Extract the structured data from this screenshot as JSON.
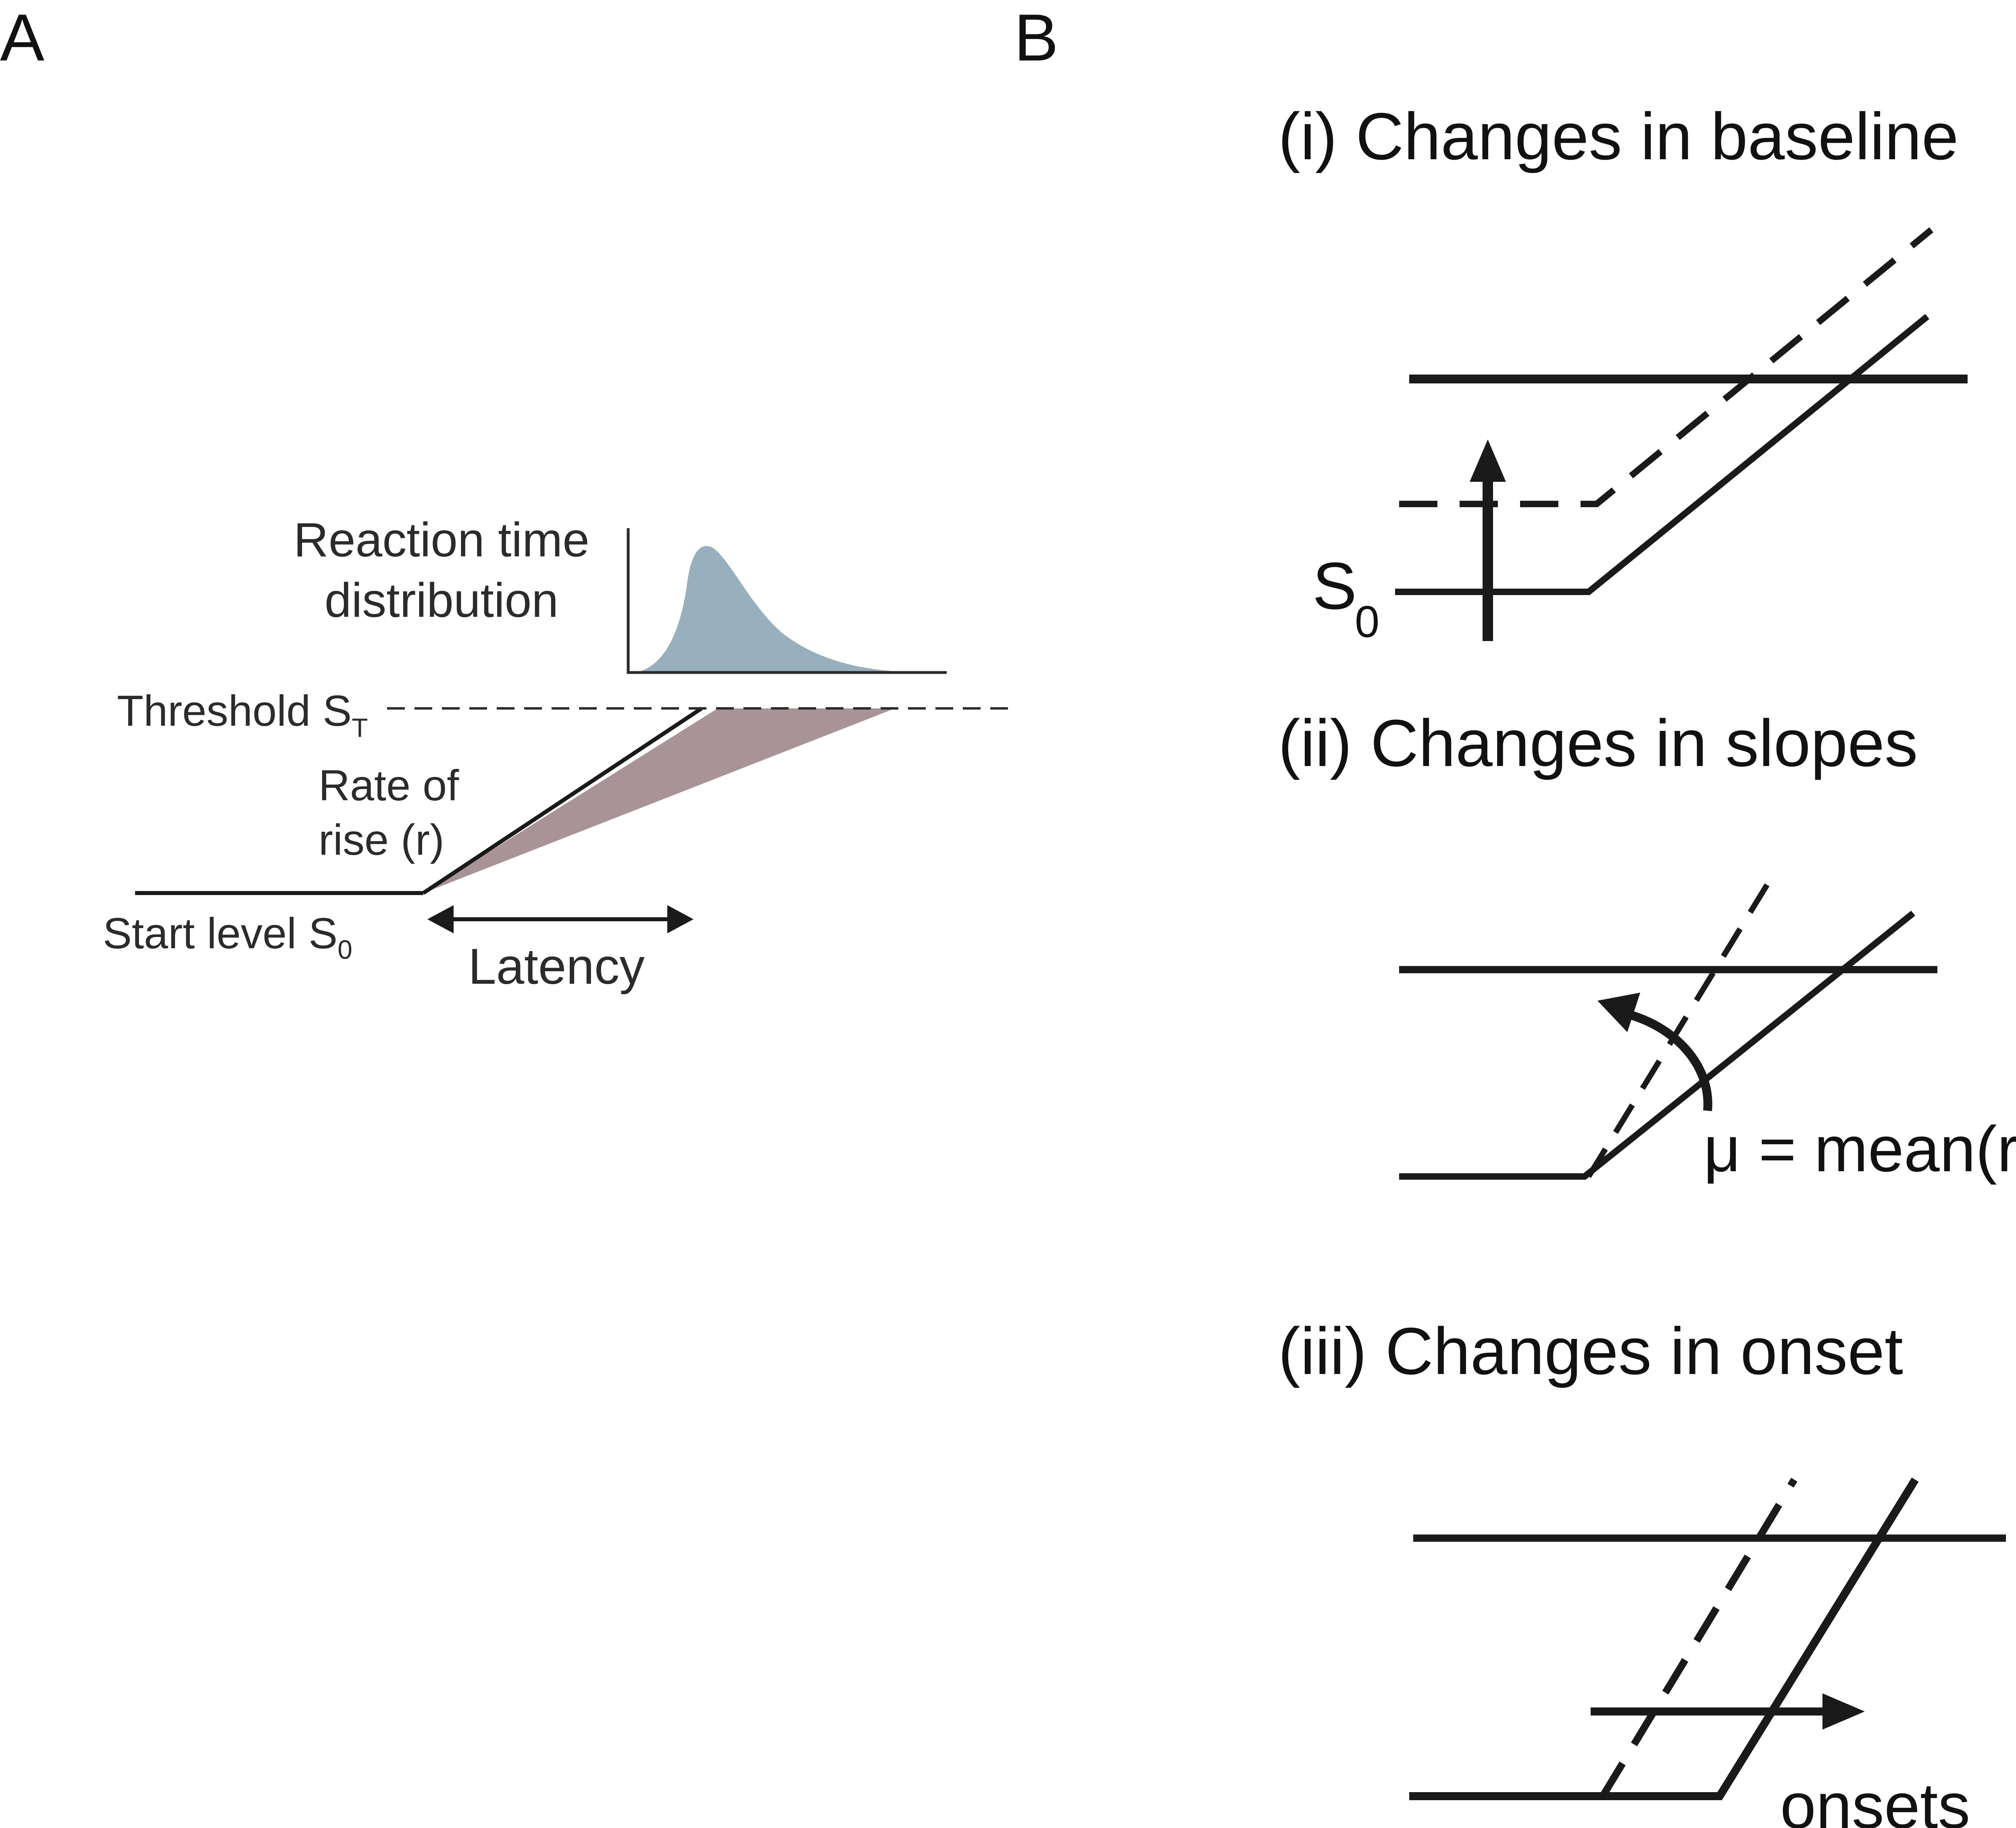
{
  "panel_a": {
    "letter": "A",
    "rt_title_line1": "Reaction time",
    "rt_title_line2": "distribution",
    "threshold_label": "Threshold S",
    "threshold_sub": "T",
    "rate_line1": "Rate of",
    "rate_line2": "rise (r)",
    "start_label": "Start level S",
    "start_sub": "0",
    "latency_label": "Latency"
  },
  "panel_b": {
    "letter": "B",
    "baseline_title": "(i) Changes in baseline",
    "s0_main": "S",
    "s0_sub": "0",
    "slopes_title": "(ii) Changes in slopes",
    "mu_label": "μ = mean(r)",
    "onset_title": "(iii) Changes in onset",
    "onsets_label": "onsets"
  },
  "colors": {
    "ink": "#1a1a1a",
    "panel_a_ink": "#2b2b2b",
    "distribution_fill": "#98b0bd",
    "rise_wedge_fill": "#a89496"
  }
}
